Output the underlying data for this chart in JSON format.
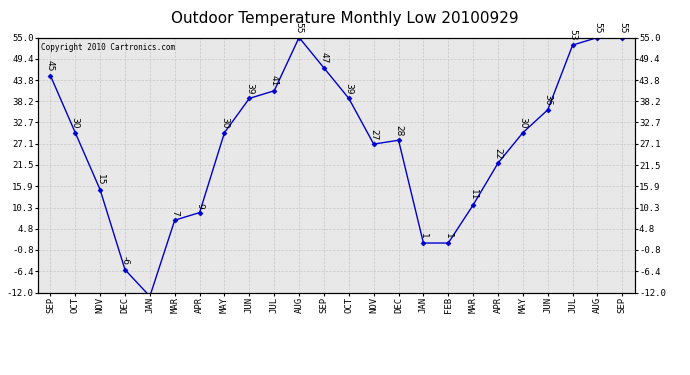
{
  "title": "Outdoor Temperature Monthly Low 20100929",
  "copyright": "Copyright 2010 Cartronics.com",
  "months": [
    "SEP",
    "OCT",
    "NOV",
    "DEC",
    "JAN",
    "MAR",
    "APR",
    "MAY",
    "JUN",
    "JUL",
    "AUG",
    "SEP",
    "OCT",
    "NOV",
    "DEC",
    "JAN",
    "FEB",
    "MAR",
    "APR",
    "MAY",
    "JUN",
    "JUL",
    "AUG",
    "SEP"
  ],
  "values": [
    45,
    30,
    15,
    -6,
    -13,
    7,
    9,
    30,
    39,
    41,
    55,
    47,
    39,
    27,
    28,
    1,
    1,
    11,
    22,
    30,
    36,
    53,
    55,
    55
  ],
  "ylim": [
    -12.0,
    55.0
  ],
  "yticks": [
    55.0,
    49.4,
    43.8,
    38.2,
    32.7,
    27.1,
    21.5,
    15.9,
    10.3,
    4.8,
    -0.8,
    -6.4,
    -12.0
  ],
  "line_color": "#0000cc",
  "marker_color": "#0000cc",
  "grid_color": "#c8c8c8",
  "bg_color": "#e8e8e8",
  "title_fontsize": 11,
  "tick_fontsize": 6.5,
  "annotation_fontsize": 6.5
}
